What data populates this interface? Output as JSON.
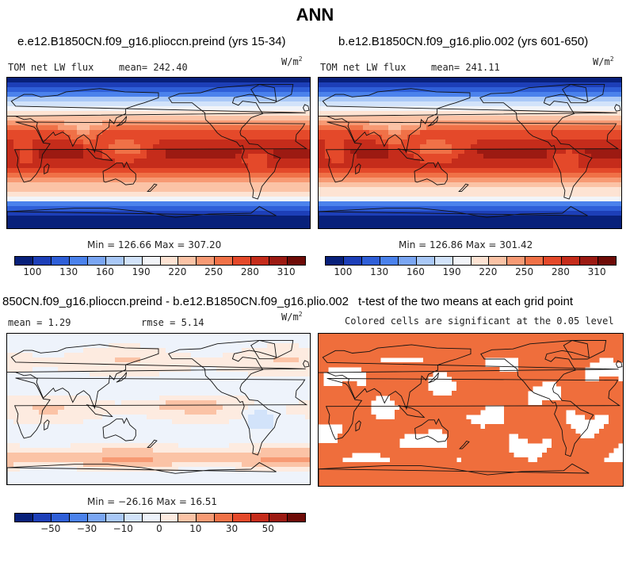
{
  "figure": {
    "title": "ANN"
  },
  "chart_data": [
    {
      "type": "heatmap",
      "title": "e.e12.B1850CN.f09_g16.plioccn.preind (yrs 15-34)",
      "variable": "TOM net LW flux",
      "mean_label": "mean= 242.40",
      "units": "W/m",
      "units_exp": "2",
      "min_max_label": "Min = 126.66 Max = 307.20",
      "min": 126.66,
      "max": 307.2,
      "colorbar_ticks": [
        "100",
        "130",
        "160",
        "190",
        "220",
        "250",
        "280",
        "310"
      ]
    },
    {
      "type": "heatmap",
      "title": "b.e12.B1850CN.f09_g16.plio.002 (yrs 601-650)",
      "variable": "TOM net LW flux",
      "mean_label": "mean= 241.11",
      "units": "W/m",
      "units_exp": "2",
      "min_max_label": "Min = 126.86 Max = 301.42",
      "min": 126.86,
      "max": 301.42,
      "colorbar_ticks": [
        "100",
        "130",
        "160",
        "190",
        "220",
        "250",
        "280",
        "310"
      ]
    },
    {
      "type": "heatmap",
      "title": "850CN.f09_g16.plioccn.preind - b.e12.B1850CN.f09_g16.plio.002",
      "mean_label": "mean =  1.29",
      "rmse_label": "rmse =  5.14",
      "units": "W/m",
      "units_exp": "2",
      "min_max_label": "Min = −26.16 Max =  16.51",
      "min": -26.16,
      "max": 16.51,
      "colorbar_ticks": [
        "−50",
        "−30",
        "−10",
        "0",
        "10",
        "30",
        "50"
      ]
    },
    {
      "type": "heatmap",
      "title": "t-test of the two means at each grid point",
      "subtitle": "Colored cells are significant at the 0.05 level"
    }
  ],
  "colors": {
    "main_scale": [
      "#08207a",
      "#1d3fb8",
      "#2f5fd8",
      "#4b82ec",
      "#7aa6f3",
      "#a9c8f7",
      "#d2e3fa",
      "#f2f4f8",
      "#fde3d3",
      "#fbc3a6",
      "#f79a74",
      "#f07147",
      "#e4492a",
      "#c52c1b",
      "#9c1a12",
      "#6e0b07"
    ],
    "diff_scale": [
      "#08207a",
      "#1d3fb8",
      "#2f5fd8",
      "#4b82ec",
      "#7aa6f3",
      "#a9c8f7",
      "#d2e3fa",
      "#eef3fb",
      "#fdebe0",
      "#fbc3a6",
      "#f79a74",
      "#f07147",
      "#e4492a",
      "#c52c1b",
      "#9c1a12",
      "#6e0b07"
    ],
    "sig_fill": "#ef6e3c"
  }
}
